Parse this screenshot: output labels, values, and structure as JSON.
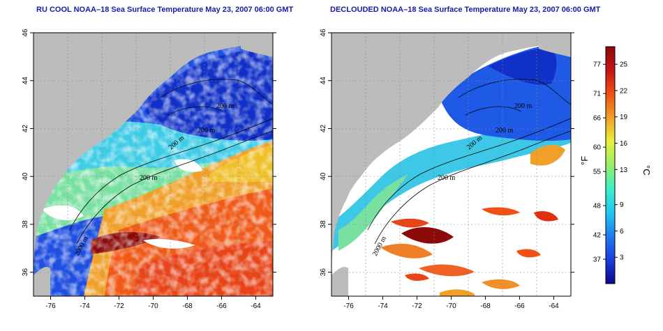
{
  "panels": [
    {
      "title": "RU COOL NOAA–18 Sea Surface Temperature May 23, 2007 06:00 GMT",
      "contour_labels": [
        "200 m",
        "200 m",
        "200 m",
        "200 m",
        "2000 m"
      ]
    },
    {
      "title": "DECLOUDED NOAA–18 Sea Surface Temperature May 23, 2007 06:00 GMT",
      "contour_labels": [
        "200 m",
        "200 m",
        "200 m",
        "200 m",
        "2000 m"
      ]
    }
  ],
  "axes": {
    "x_ticks": [
      "-76",
      "-74",
      "-72",
      "-70",
      "-68",
      "-66",
      "-64"
    ],
    "y_ticks": [
      "36",
      "38",
      "40",
      "42",
      "44",
      "46"
    ],
    "x_range": [
      -77,
      -63
    ],
    "y_range": [
      35,
      46
    ]
  },
  "colorbar": {
    "unit_f": "°F",
    "unit_c": "°C",
    "f_ticks": [
      "77",
      "71",
      "66",
      "60",
      "55",
      "48",
      "42",
      "37"
    ],
    "c_ticks": [
      "25",
      "22",
      "19",
      "16",
      "13",
      "9",
      "6",
      "3"
    ],
    "colors": [
      "#0a0a8c",
      "#1a3ce0",
      "#1e7cf0",
      "#1ec8f0",
      "#3cf0c8",
      "#96f064",
      "#e6f03c",
      "#f0a028",
      "#f05014",
      "#c81414",
      "#8c0a0a"
    ]
  },
  "colors": {
    "land": "#bcbcbc",
    "cloud": "#ffffff",
    "grid": "#888888"
  }
}
